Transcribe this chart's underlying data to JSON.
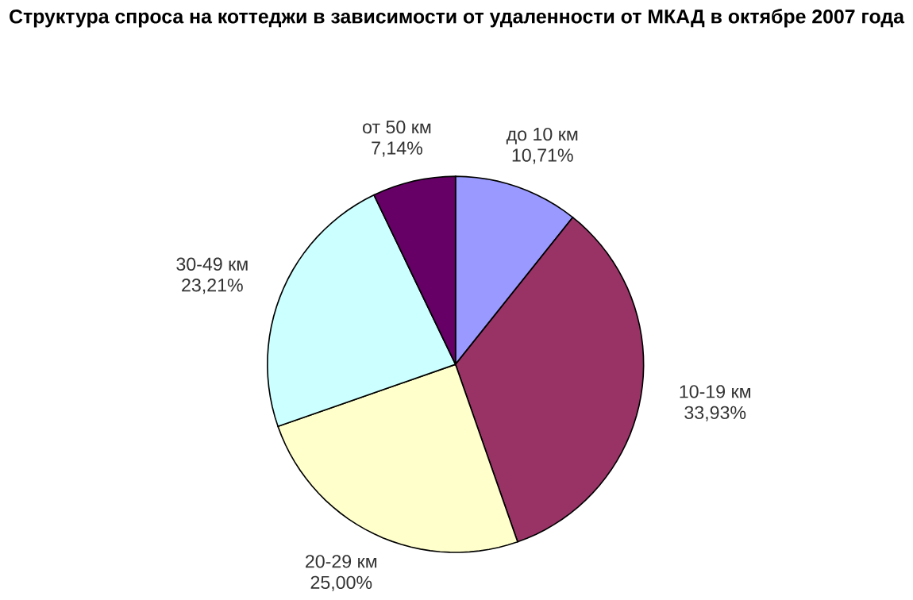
{
  "chart_data": {
    "type": "pie",
    "title": "Структура спроса на коттеджи в зависимости от удаленности от МКАД в октябре 2007 года",
    "categories": [
      "до 10 км",
      "10-19 км",
      "20-29 км",
      "30-49 км",
      "от 50 км"
    ],
    "values": [
      10.71,
      33.93,
      25.0,
      23.21,
      7.14
    ],
    "value_labels": [
      "10,71%",
      "33,93%",
      "25,00%",
      "23,21%",
      "7,14%"
    ],
    "colors": [
      "#9999ff",
      "#993366",
      "#ffffcc",
      "#ccffff",
      "#660066"
    ]
  }
}
